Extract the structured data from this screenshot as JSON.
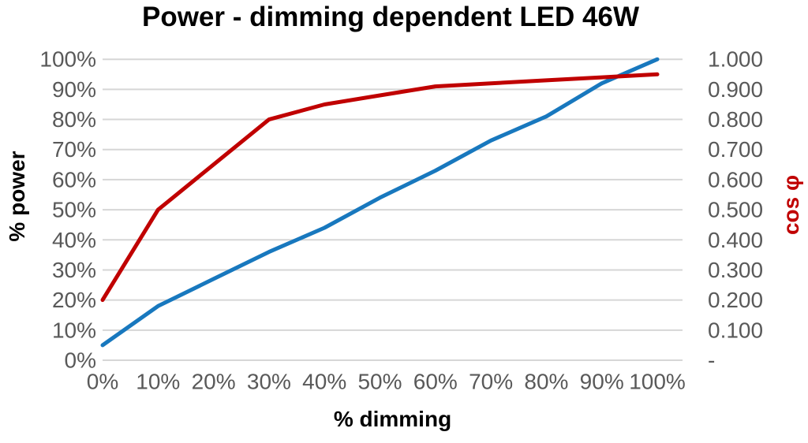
{
  "title": "Power - dimming dependent LED 46W",
  "chart_data": {
    "type": "line",
    "title": "Power - dimming dependent LED 46W",
    "xlabel": "% dimming",
    "ylabel_left": "% power",
    "ylabel_right": "cos φ",
    "grid": true,
    "legend": false,
    "categories": [
      "0%",
      "10%",
      "20%",
      "30%",
      "40%",
      "50%",
      "60%",
      "70%",
      "80%",
      "90%",
      "100%"
    ],
    "left_axis_tick_labels": [
      "0%",
      "10%",
      "20%",
      "30%",
      "40%",
      "50%",
      "60%",
      "70%",
      "80%",
      "90%",
      "100%"
    ],
    "right_axis_tick_labels": [
      "-",
      "0.100",
      "0.200",
      "0.300",
      "0.400",
      "0.500",
      "0.600",
      "0.700",
      "0.800",
      "0.900",
      "1.000"
    ],
    "left_ylim": [
      0,
      100
    ],
    "right_ylim": [
      0,
      1
    ],
    "series": [
      {
        "name": "% power",
        "axis": "left",
        "color": "#1878BE",
        "values": [
          5,
          18,
          27,
          36,
          44,
          54,
          63,
          73,
          81,
          92,
          100
        ]
      },
      {
        "name": "cos φ",
        "axis": "right",
        "color": "#C00000",
        "values": [
          0.2,
          0.5,
          0.65,
          0.8,
          0.85,
          0.88,
          0.91,
          0.92,
          0.93,
          0.94,
          0.95
        ]
      }
    ],
    "colors": {
      "power_line": "#1878BE",
      "cos_line": "#C00000",
      "gridline": "#D6D6D6",
      "tick_text": "#595959",
      "title_text": "#000000",
      "right_axis_title_text": "#C00000"
    }
  }
}
